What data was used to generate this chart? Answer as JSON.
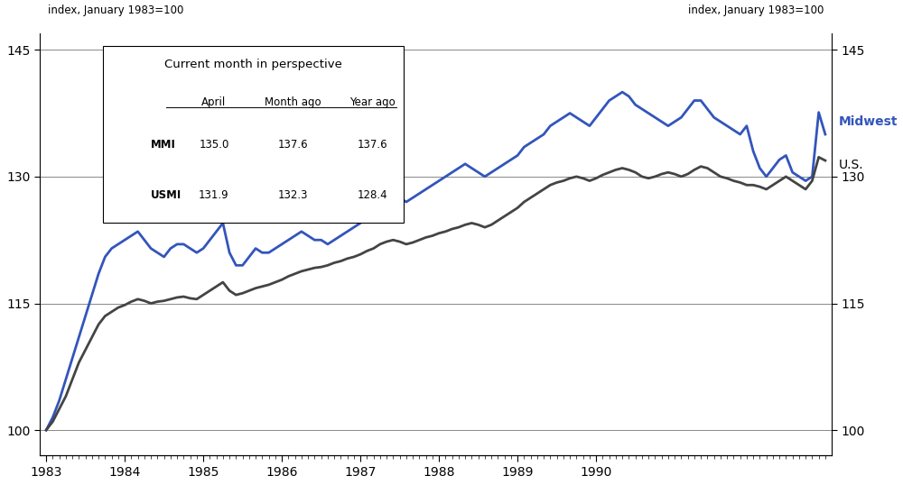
{
  "title_left": "index, January 1983=100",
  "title_right": "index, January 1983=100",
  "ylim": [
    97,
    147
  ],
  "yticks": [
    100,
    115,
    130,
    145
  ],
  "xlabel_years": [
    "1983",
    "1984",
    "1985",
    "1986",
    "1987",
    "1988",
    "1989",
    "1990"
  ],
  "mmi_color": "#3355bb",
  "usmi_color": "#444444",
  "table_title": "Current month in perspective",
  "table_headers": [
    "",
    "April",
    "Month ago",
    "Year ago"
  ],
  "table_rows": [
    [
      "MMI",
      "135.0",
      "137.6",
      "137.6"
    ],
    [
      "USMI",
      "131.9",
      "132.3",
      "128.4"
    ]
  ],
  "mmi_label": "Midwest",
  "usmi_label": "U.S.",
  "mmi_data": [
    100.0,
    101.5,
    103.5,
    106.0,
    108.5,
    111.0,
    113.5,
    116.0,
    118.5,
    120.5,
    121.5,
    122.0,
    122.5,
    123.0,
    123.5,
    122.5,
    121.5,
    121.0,
    120.5,
    121.5,
    122.0,
    122.0,
    121.5,
    121.0,
    121.5,
    122.5,
    123.5,
    124.5,
    121.0,
    119.5,
    119.5,
    120.5,
    121.5,
    121.0,
    121.0,
    121.5,
    122.0,
    122.5,
    123.0,
    123.5,
    123.0,
    122.5,
    122.5,
    122.0,
    122.5,
    123.0,
    123.5,
    124.0,
    124.5,
    125.5,
    126.5,
    127.5,
    128.0,
    128.5,
    127.5,
    127.0,
    127.5,
    128.0,
    128.5,
    129.0,
    129.5,
    130.0,
    130.5,
    131.0,
    131.5,
    131.0,
    130.5,
    130.0,
    130.5,
    131.0,
    131.5,
    132.0,
    132.5,
    133.5,
    134.0,
    134.5,
    135.0,
    136.0,
    136.5,
    137.0,
    137.5,
    137.0,
    136.5,
    136.0,
    137.0,
    138.0,
    139.0,
    139.5,
    140.0,
    139.5,
    138.5,
    138.0,
    137.5,
    137.0,
    136.5,
    136.0,
    136.5,
    137.0,
    138.0,
    139.0,
    139.0,
    138.0,
    137.0,
    136.5,
    136.0,
    135.5,
    135.0,
    136.0,
    133.0,
    131.0,
    130.0,
    131.0,
    132.0,
    132.5,
    130.5,
    130.0,
    129.5,
    130.0,
    137.6,
    135.0
  ],
  "usmi_data": [
    100.0,
    101.0,
    102.5,
    104.0,
    106.0,
    108.0,
    109.5,
    111.0,
    112.5,
    113.5,
    114.0,
    114.5,
    114.8,
    115.2,
    115.5,
    115.3,
    115.0,
    115.2,
    115.3,
    115.5,
    115.7,
    115.8,
    115.6,
    115.5,
    116.0,
    116.5,
    117.0,
    117.5,
    116.5,
    116.0,
    116.2,
    116.5,
    116.8,
    117.0,
    117.2,
    117.5,
    117.8,
    118.2,
    118.5,
    118.8,
    119.0,
    119.2,
    119.3,
    119.5,
    119.8,
    120.0,
    120.3,
    120.5,
    120.8,
    121.2,
    121.5,
    122.0,
    122.3,
    122.5,
    122.3,
    122.0,
    122.2,
    122.5,
    122.8,
    123.0,
    123.3,
    123.5,
    123.8,
    124.0,
    124.3,
    124.5,
    124.3,
    124.0,
    124.3,
    124.8,
    125.3,
    125.8,
    126.3,
    127.0,
    127.5,
    128.0,
    128.5,
    129.0,
    129.3,
    129.5,
    129.8,
    130.0,
    129.8,
    129.5,
    129.8,
    130.2,
    130.5,
    130.8,
    131.0,
    130.8,
    130.5,
    130.0,
    129.8,
    130.0,
    130.3,
    130.5,
    130.3,
    130.0,
    130.3,
    130.8,
    131.2,
    131.0,
    130.5,
    130.0,
    129.8,
    129.5,
    129.3,
    129.0,
    129.0,
    128.8,
    128.5,
    129.0,
    129.5,
    130.0,
    129.5,
    129.0,
    128.5,
    129.5,
    132.3,
    131.9
  ]
}
